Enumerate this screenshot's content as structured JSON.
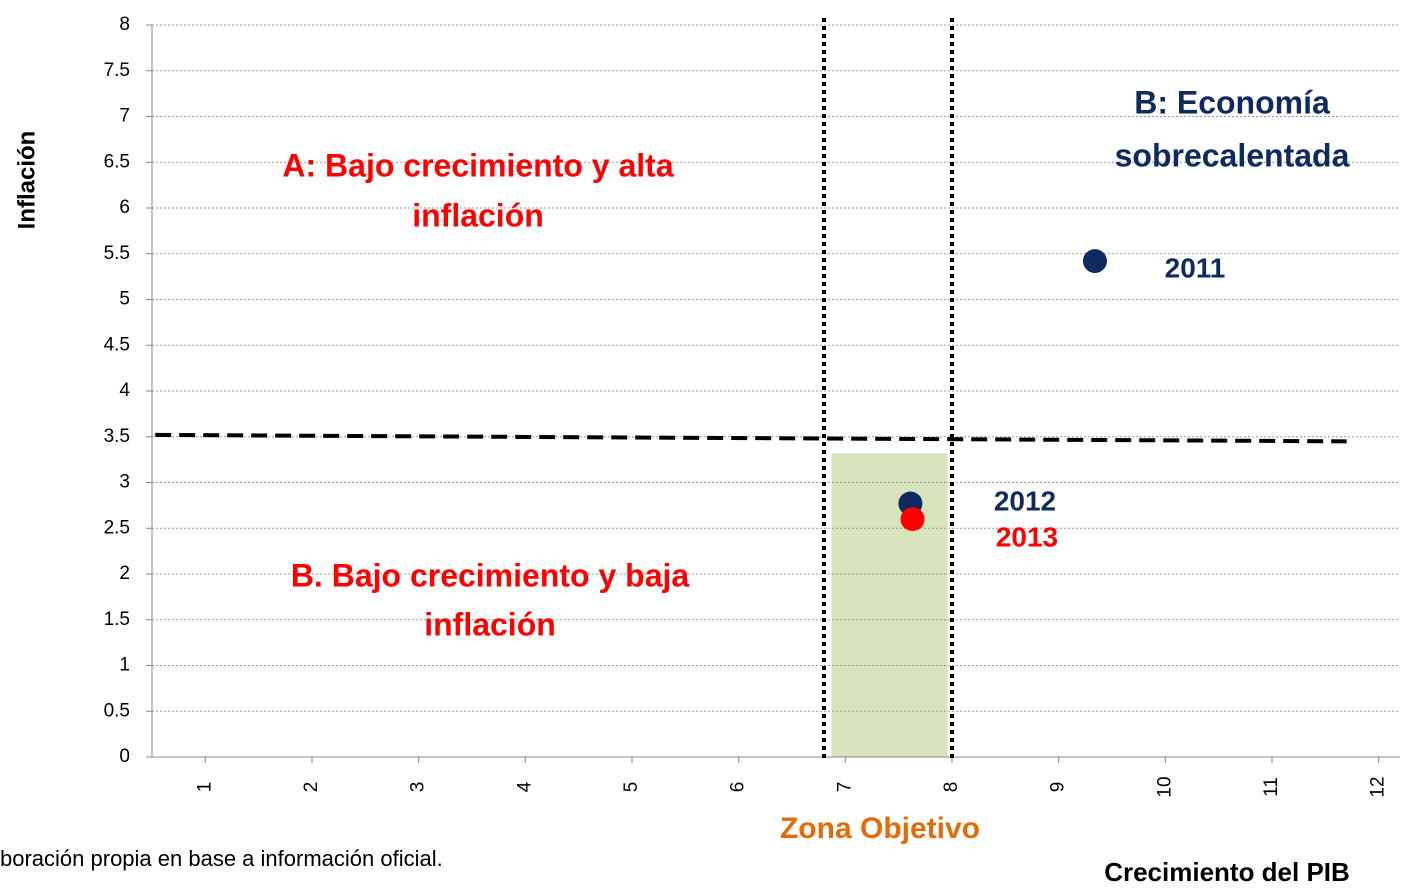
{
  "chart_data": {
    "type": "scatter",
    "xlabel": "Crecimiento del PIB",
    "ylabel": "Inflación",
    "xlim": [
      0.5,
      12.2
    ],
    "ylim": [
      0,
      8
    ],
    "xticks": [
      1,
      2,
      3,
      4,
      5,
      6,
      7,
      8,
      9,
      10,
      11,
      12
    ],
    "yticks": [
      0,
      0.5,
      1,
      1.5,
      2,
      2.5,
      3,
      3.5,
      4,
      4.5,
      5,
      5.5,
      6,
      6.5,
      7,
      7.5,
      8
    ],
    "grid": true,
    "series": [
      {
        "name": "2011",
        "color": "#0f2a5e",
        "x": [
          9.34
        ],
        "values": [
          5.42
        ]
      },
      {
        "name": "2012",
        "color": "#0f2a5e",
        "x": [
          7.61
        ],
        "values": [
          2.77
        ]
      },
      {
        "name": "2013",
        "color": "#ff0000",
        "x": [
          7.63
        ],
        "values": [
          2.6
        ]
      }
    ],
    "threshold_line": {
      "x": [
        0.53,
        11.7
      ],
      "values": [
        3.52,
        3.45
      ]
    },
    "vertical_lines": [
      6.8,
      8.0
    ],
    "zone": {
      "label": "Zona Objetivo",
      "x": [
        6.87,
        7.96
      ],
      "values": [
        0,
        3.32
      ],
      "color": "#d7e4bd"
    },
    "annotations": [
      {
        "lines": [
          "A: Bajo crecimiento y alta",
          "inflación"
        ],
        "color": "#ff0000"
      },
      {
        "lines": [
          "B: Economía",
          "sobrecalentada"
        ],
        "color": "#0f2a5e"
      },
      {
        "lines": [
          "B. Bajo crecimiento y baja",
          "inflación"
        ],
        "color": "#ff0000"
      }
    ],
    "source": "boración propia en base a información oficial."
  }
}
